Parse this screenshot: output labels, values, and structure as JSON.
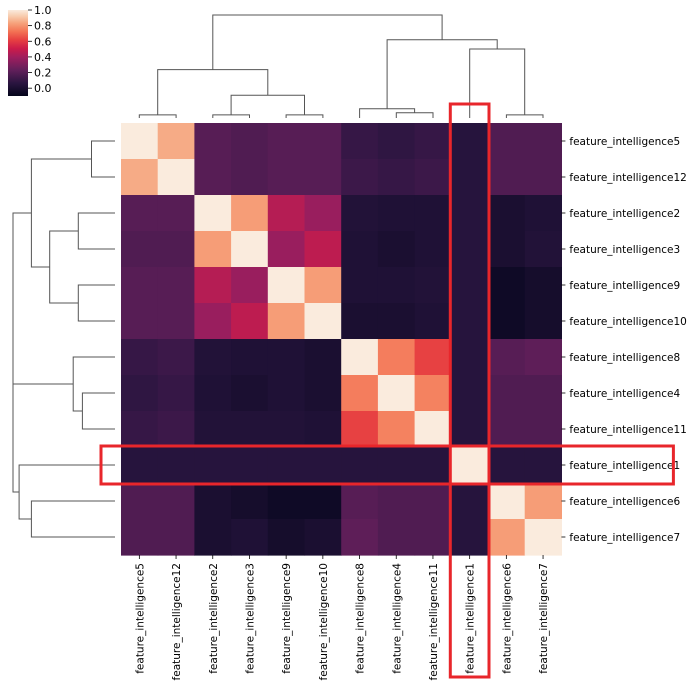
{
  "chart_data": {
    "type": "heatmap",
    "subtype": "clustermap",
    "colormap": "rocket",
    "highlight_color": "#e8262b",
    "dendrogram_color": "#555555",
    "highlighted_feature": "feature_intelligence1",
    "order": [
      "feature_intelligence5",
      "feature_intelligence12",
      "feature_intelligence2",
      "feature_intelligence3",
      "feature_intelligence9",
      "feature_intelligence10",
      "feature_intelligence8",
      "feature_intelligence4",
      "feature_intelligence11",
      "feature_intelligence1",
      "feature_intelligence6",
      "feature_intelligence7"
    ],
    "matrix": [
      [
        1.0,
        0.85,
        0.2,
        0.18,
        0.2,
        0.2,
        0.1,
        0.08,
        0.1,
        0.05,
        0.18,
        0.18
      ],
      [
        0.85,
        1.0,
        0.2,
        0.18,
        0.2,
        0.2,
        0.12,
        0.1,
        0.12,
        0.05,
        0.18,
        0.18
      ],
      [
        0.2,
        0.2,
        1.0,
        0.82,
        0.45,
        0.38,
        0.03,
        0.02,
        0.02,
        0.05,
        0.0,
        0.02
      ],
      [
        0.18,
        0.18,
        0.82,
        1.0,
        0.38,
        0.47,
        0.02,
        0.0,
        0.02,
        0.05,
        0.0,
        0.03
      ],
      [
        0.2,
        0.2,
        0.45,
        0.38,
        1.0,
        0.82,
        0.02,
        0.02,
        0.03,
        0.05,
        -0.05,
        -0.02
      ],
      [
        0.2,
        0.2,
        0.38,
        0.47,
        0.82,
        1.0,
        0.0,
        0.0,
        0.02,
        0.05,
        -0.05,
        -0.02
      ],
      [
        0.1,
        0.12,
        0.03,
        0.02,
        0.02,
        0.0,
        1.0,
        0.75,
        0.62,
        0.05,
        0.2,
        0.22
      ],
      [
        0.08,
        0.1,
        0.02,
        0.0,
        0.02,
        0.0,
        0.75,
        1.0,
        0.76,
        0.05,
        0.18,
        0.18
      ],
      [
        0.1,
        0.12,
        0.03,
        0.03,
        0.03,
        0.02,
        0.62,
        0.76,
        1.0,
        0.05,
        0.18,
        0.18
      ],
      [
        0.05,
        0.05,
        0.05,
        0.05,
        0.05,
        0.05,
        0.05,
        0.05,
        0.05,
        1.0,
        0.05,
        0.05
      ],
      [
        0.18,
        0.18,
        0.0,
        -0.02,
        -0.05,
        -0.05,
        0.2,
        0.18,
        0.18,
        0.05,
        1.0,
        0.82
      ],
      [
        0.18,
        0.18,
        0.0,
        0.02,
        -0.02,
        0.0,
        0.22,
        0.18,
        0.18,
        0.05,
        0.82,
        1.0
      ]
    ],
    "colorbar": {
      "vmin": -0.1,
      "vmax": 1.0,
      "ticks": [
        "1.0",
        "0.8",
        "0.6",
        "0.4",
        "0.2",
        "0.0"
      ]
    },
    "col_dendrogram": [
      [
        0.5,
        0.5,
        1.5,
        1.5,
        0.0,
        0.03,
        0.03,
        0.0
      ],
      [
        2.5,
        2.5,
        3.5,
        3.5,
        0.0,
        0.03,
        0.03,
        0.0
      ],
      [
        4.5,
        4.5,
        5.5,
        5.5,
        0.0,
        0.03,
        0.03,
        0.0
      ],
      [
        3.0,
        3.0,
        5.0,
        5.0,
        0.03,
        0.22,
        0.22,
        0.03
      ],
      [
        1.0,
        1.0,
        4.0,
        4.0,
        0.03,
        0.47,
        0.47,
        0.22
      ],
      [
        7.5,
        7.5,
        8.5,
        8.5,
        0.0,
        0.05,
        0.05,
        0.0
      ],
      [
        6.5,
        6.5,
        8.0,
        8.0,
        0.0,
        0.09,
        0.09,
        0.05
      ],
      [
        10.5,
        10.5,
        11.5,
        11.5,
        0.0,
        0.03,
        0.03,
        0.0
      ],
      [
        9.5,
        9.5,
        11.0,
        11.0,
        0.0,
        0.67,
        0.67,
        0.03
      ],
      [
        7.25,
        7.25,
        10.25,
        10.25,
        0.09,
        0.76,
        0.76,
        0.67
      ],
      [
        2.5,
        2.5,
        8.75,
        8.75,
        0.47,
        1.0,
        1.0,
        0.76
      ]
    ],
    "row_dendrogram": [
      [
        0.5,
        0.5,
        1.5,
        1.5,
        0.0,
        0.23,
        0.23,
        0.0
      ],
      [
        2.5,
        2.5,
        3.5,
        3.5,
        0.0,
        0.36,
        0.36,
        0.0
      ],
      [
        4.5,
        4.5,
        5.5,
        5.5,
        0.0,
        0.36,
        0.36,
        0.0
      ],
      [
        3.0,
        3.0,
        5.0,
        5.0,
        0.36,
        0.64,
        0.64,
        0.36
      ],
      [
        1.0,
        1.0,
        4.0,
        4.0,
        0.23,
        0.82,
        0.82,
        0.64
      ],
      [
        7.5,
        7.5,
        8.5,
        8.5,
        0.0,
        0.32,
        0.32,
        0.0
      ],
      [
        6.5,
        6.5,
        8.0,
        8.0,
        0.0,
        0.41,
        0.41,
        0.32
      ],
      [
        10.5,
        10.5,
        11.5,
        11.5,
        0.0,
        0.82,
        0.82,
        0.0
      ],
      [
        9.5,
        9.5,
        11.0,
        11.0,
        0.0,
        0.94,
        0.94,
        0.82
      ],
      [
        7.25,
        7.25,
        10.25,
        10.25,
        0.41,
        1.0,
        1.0,
        0.94
      ],
      [
        2.5,
        2.5,
        8.75,
        8.75,
        0.82,
        1.0,
        1.0,
        1.0
      ]
    ]
  }
}
